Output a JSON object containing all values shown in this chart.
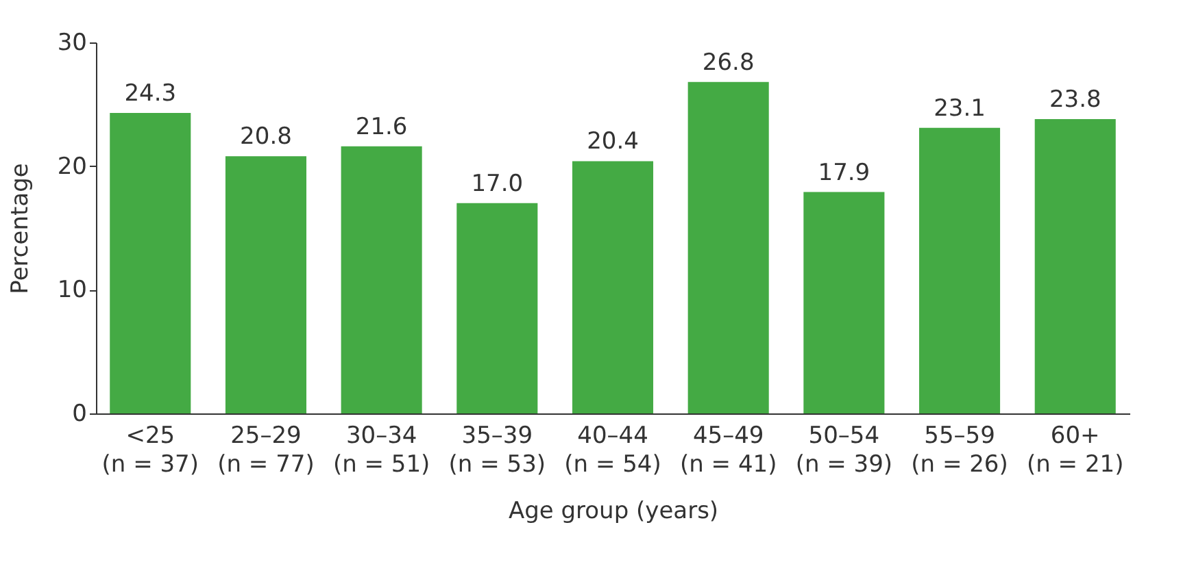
{
  "chart_data": {
    "type": "bar",
    "xlabel": "Age group (years)",
    "ylabel": "Percentage",
    "categories": [
      "<25\n(n = 37)",
      "25–29\n(n = 77)",
      "30–34\n(n = 51)",
      "35–39\n(n = 53)",
      "40–44\n(n = 54)",
      "45–49\n(n = 41)",
      "50–54\n(n = 39)",
      "55–59\n(n = 26)",
      "60+\n(n = 21)"
    ],
    "values": [
      24.3,
      20.8,
      21.6,
      17.0,
      20.4,
      26.8,
      17.9,
      23.1,
      23.8
    ],
    "value_labels": [
      "24.3",
      "20.8",
      "21.6",
      "17.0",
      "20.4",
      "26.8",
      "17.9",
      "23.1",
      "23.8"
    ],
    "color": "#44aa44",
    "ylim": [
      0,
      30
    ],
    "yticks": [
      0,
      10,
      20,
      30
    ],
    "grid": false
  }
}
